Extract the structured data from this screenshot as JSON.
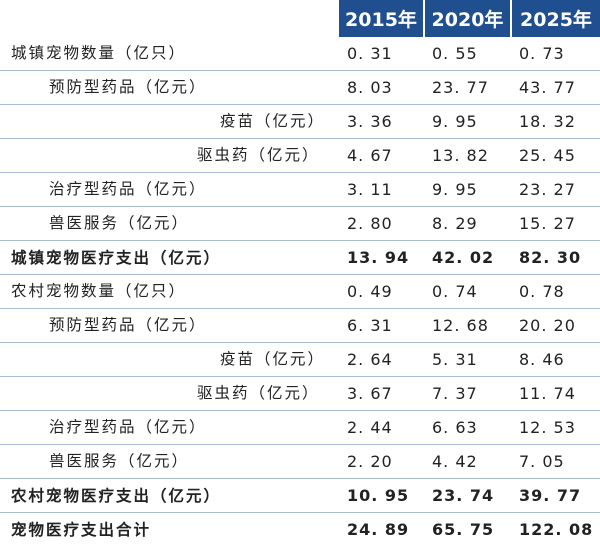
{
  "header": {
    "years": [
      "2015年",
      "2020年",
      "2025年"
    ]
  },
  "rows": [
    {
      "label": "城镇宠物数量（亿只）",
      "v2015": "0. 31",
      "v2020": "0. 55",
      "v2025": "0. 73"
    },
    {
      "label": "预防型药品（亿元）",
      "v2015": "8. 03",
      "v2020": "23. 77",
      "v2025": "43. 77"
    },
    {
      "label": "疫苗（亿元）",
      "v2015": "3. 36",
      "v2020": "9. 95",
      "v2025": "18. 32"
    },
    {
      "label": "驱虫药（亿元）",
      "v2015": "4. 67",
      "v2020": "13. 82",
      "v2025": "25. 45"
    },
    {
      "label": "治疗型药品（亿元）",
      "v2015": "3. 11",
      "v2020": "9. 95",
      "v2025": "23. 27"
    },
    {
      "label": "兽医服务（亿元）",
      "v2015": "2. 80",
      "v2020": "8. 29",
      "v2025": "15. 27"
    },
    {
      "label": "城镇宠物医疗支出（亿元）",
      "v2015": "13. 94",
      "v2020": "42. 02",
      "v2025": "82. 30"
    },
    {
      "label": "农村宠物数量（亿只）",
      "v2015": "0. 49",
      "v2020": "0. 74",
      "v2025": "0. 78"
    },
    {
      "label": "预防型药品（亿元）",
      "v2015": "6. 31",
      "v2020": "12. 68",
      "v2025": "20. 20"
    },
    {
      "label": "疫苗（亿元）",
      "v2015": "2. 64",
      "v2020": "5. 31",
      "v2025": "8. 46"
    },
    {
      "label": "驱虫药（亿元）",
      "v2015": "3. 67",
      "v2020": "7. 37",
      "v2025": "11. 74"
    },
    {
      "label": "治疗型药品（亿元）",
      "v2015": "2. 44",
      "v2020": "6. 63",
      "v2025": "12. 53"
    },
    {
      "label": "兽医服务（亿元）",
      "v2015": "2. 20",
      "v2020": "4. 42",
      "v2025": "7. 05"
    },
    {
      "label": "农村宠物医疗支出（亿元）",
      "v2015": "10. 95",
      "v2020": "23. 74",
      "v2025": "39. 77"
    },
    {
      "label": "宠物医疗支出合计",
      "v2015": "24. 89",
      "v2020": "65. 75",
      "v2025": "122. 08"
    }
  ]
}
